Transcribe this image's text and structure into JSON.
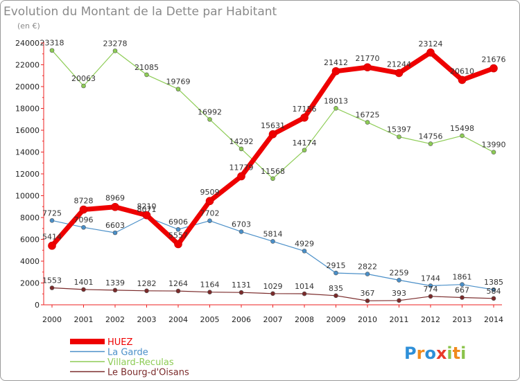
{
  "header": {
    "title": "Evolution du Montant de la Dette par Habitant",
    "subtitle": "(en €)"
  },
  "brand": {
    "text": "Proxiti",
    "letters": [
      "P",
      "r",
      "o",
      "x",
      "i",
      "t",
      "i"
    ],
    "colors": [
      "#2e8fd8",
      "#f08a1c",
      "#2e8fd8",
      "#e83a2a",
      "#8bc34a",
      "#f08a1c",
      "#8bc34a"
    ]
  },
  "chart_data": {
    "type": "line",
    "title": "Evolution du Montant de la Dette par Habitant",
    "subtitle": "(en €)",
    "xlabel": "",
    "ylabel": "",
    "x": [
      "2000",
      "2001",
      "2002",
      "2003",
      "2004",
      "2005",
      "2006",
      "2007",
      "2008",
      "2009",
      "2010",
      "2011",
      "2012",
      "2013",
      "2014"
    ],
    "ylim": [
      0,
      24000
    ],
    "yticks": [
      0,
      2000,
      4000,
      6000,
      8000,
      10000,
      12000,
      14000,
      16000,
      18000,
      20000,
      22000,
      24000
    ],
    "grid": false,
    "legend_position": "bottom-left",
    "series": [
      {
        "name": "HUEZ",
        "color": "#ee0000",
        "values": [
          5414,
          8728,
          8969,
          8210,
          5557,
          9509,
          11779,
          15631,
          17156,
          21412,
          21770,
          21244,
          23124,
          20610,
          21676
        ]
      },
      {
        "name": "La Garde",
        "color": "#4a8fc8",
        "values": [
          7725,
          7096,
          6603,
          8071,
          6906,
          7702,
          6703,
          5814,
          4929,
          2915,
          2822,
          2259,
          1744,
          1861,
          1385
        ]
      },
      {
        "name": "Villard-Reculas",
        "color": "#8dcc55",
        "values": [
          23318,
          20063,
          23278,
          21085,
          19769,
          16992,
          14292,
          11568,
          14174,
          18013,
          16725,
          15397,
          14756,
          15498,
          13990
        ]
      },
      {
        "name": "Le Bourg-d'Oisans",
        "color": "#7a2a2a",
        "values": [
          1553,
          1401,
          1339,
          1282,
          1264,
          1164,
          1131,
          1029,
          1014,
          835,
          367,
          393,
          774,
          667,
          584
        ]
      }
    ]
  }
}
